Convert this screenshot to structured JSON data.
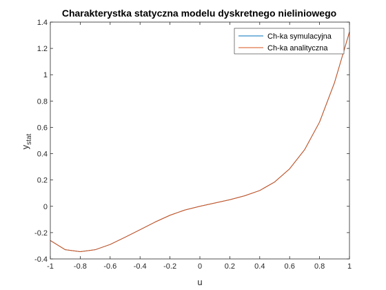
{
  "chart_data": {
    "type": "line",
    "title": "Charakterystka statyczna modelu dyskretnego nieliniowego",
    "xlabel": "u",
    "ylabel": "y",
    "ylabel_sub": "stat",
    "xlim": [
      -1,
      1
    ],
    "ylim": [
      -0.4,
      1.4
    ],
    "xticks": [
      -1,
      -0.8,
      -0.6,
      -0.4,
      -0.2,
      0,
      0.2,
      0.4,
      0.6,
      0.8,
      1
    ],
    "xtick_labels": [
      "-1",
      "-0.8",
      "-0.6",
      "-0.4",
      "-0.2",
      "0",
      "0.2",
      "0.4",
      "0.6",
      "0.8",
      "1"
    ],
    "yticks": [
      -0.4,
      -0.2,
      0,
      0.2,
      0.4,
      0.6,
      0.8,
      1,
      1.2,
      1.4
    ],
    "ytick_labels": [
      "-0.4",
      "-0.2",
      "0",
      "0.2",
      "0.4",
      "0.6",
      "0.8",
      "1",
      "1.2",
      "1.4"
    ],
    "grid": false,
    "legend_position": "top-right",
    "x": [
      -1,
      -0.9,
      -0.8,
      -0.7,
      -0.6,
      -0.5,
      -0.4,
      -0.3,
      -0.2,
      -0.1,
      0,
      0.1,
      0.2,
      0.3,
      0.4,
      0.5,
      0.6,
      0.7,
      0.8,
      0.9,
      1
    ],
    "series": [
      {
        "name": "Ch-ka symulacyjna",
        "color": "#0072BD",
        "values": [
          -0.26,
          -0.33,
          -0.345,
          -0.33,
          -0.29,
          -0.235,
          -0.178,
          -0.12,
          -0.068,
          -0.028,
          0.0,
          0.025,
          0.05,
          0.08,
          0.12,
          0.185,
          0.285,
          0.43,
          0.64,
          0.94,
          1.325
        ]
      },
      {
        "name": "Ch-ka analityczna",
        "color": "#D95319",
        "values": [
          -0.26,
          -0.33,
          -0.345,
          -0.33,
          -0.29,
          -0.235,
          -0.178,
          -0.12,
          -0.068,
          -0.028,
          0.0,
          0.025,
          0.05,
          0.08,
          0.12,
          0.185,
          0.285,
          0.43,
          0.64,
          0.94,
          1.325
        ]
      }
    ]
  }
}
